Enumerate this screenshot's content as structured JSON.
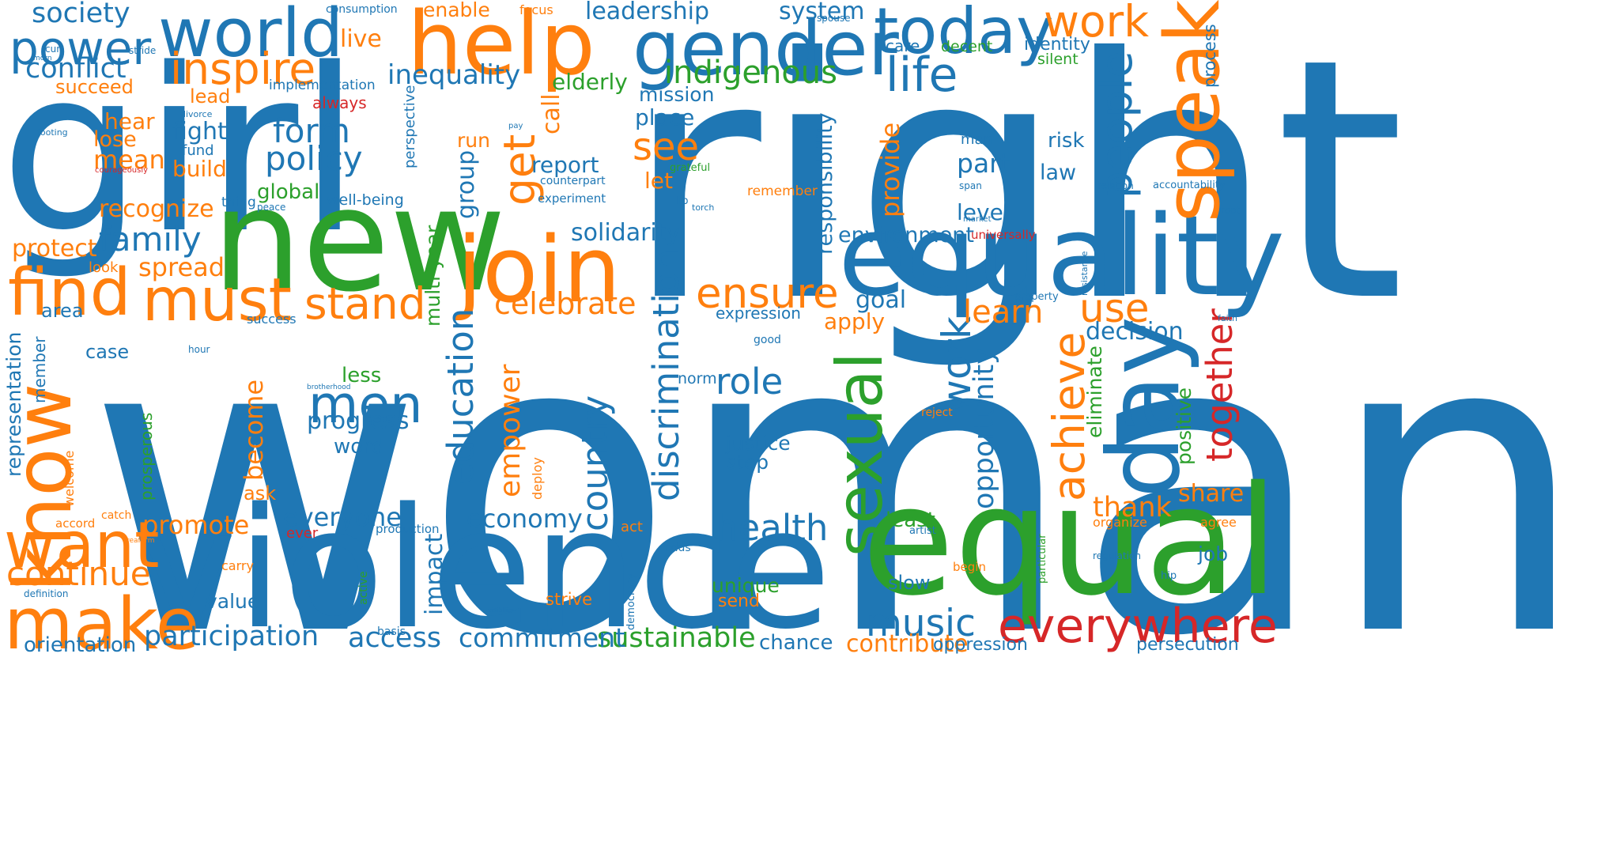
{
  "colors": {
    "blue": "#1f77b4",
    "orange": "#ff7f0e",
    "green": "#2ca02c",
    "red": "#d62728",
    "background": "#ffffff"
  },
  "words": [
    {
      "text": "woman",
      "color": "blue"
    },
    {
      "text": "right",
      "color": "blue"
    },
    {
      "text": "girl",
      "color": "blue"
    },
    {
      "text": "violence",
      "color": "blue"
    },
    {
      "text": "new",
      "color": "green"
    },
    {
      "text": "equal",
      "color": "green"
    },
    {
      "text": "equality",
      "color": "blue"
    },
    {
      "text": "help",
      "color": "orange"
    },
    {
      "text": "gender",
      "color": "blue"
    },
    {
      "text": "world",
      "color": "blue"
    },
    {
      "text": "today",
      "color": "blue"
    },
    {
      "text": "join",
      "color": "orange"
    },
    {
      "text": "speak",
      "color": "orange"
    },
    {
      "text": "day",
      "color": "blue"
    },
    {
      "text": "make",
      "color": "orange"
    },
    {
      "text": "want",
      "color": "orange"
    },
    {
      "text": "find",
      "color": "orange"
    },
    {
      "text": "must",
      "color": "orange"
    },
    {
      "text": "know",
      "color": "orange"
    },
    {
      "text": "everywhere",
      "color": "red"
    },
    {
      "text": "sexual",
      "color": "green"
    },
    {
      "text": "power",
      "color": "blue"
    },
    {
      "text": "inspire",
      "color": "orange"
    },
    {
      "text": "life",
      "color": "blue"
    },
    {
      "text": "work",
      "color": "orange"
    },
    {
      "text": "people",
      "color": "blue"
    },
    {
      "text": "achieve",
      "color": "orange"
    },
    {
      "text": "men",
      "color": "blue"
    },
    {
      "text": "stand",
      "color": "orange"
    },
    {
      "text": "ensure",
      "color": "orange"
    },
    {
      "text": "get",
      "color": "orange"
    },
    {
      "text": "discrimination",
      "color": "blue"
    },
    {
      "text": "education",
      "color": "blue"
    },
    {
      "text": "country",
      "color": "blue"
    },
    {
      "text": "music",
      "color": "blue"
    },
    {
      "text": "health",
      "color": "blue"
    },
    {
      "text": "continue",
      "color": "orange"
    },
    {
      "text": "participation",
      "color": "blue"
    },
    {
      "text": "sustainable",
      "color": "green"
    },
    {
      "text": "commitment",
      "color": "blue"
    },
    {
      "text": "access",
      "color": "blue"
    },
    {
      "text": "family",
      "color": "blue"
    },
    {
      "text": "policy",
      "color": "blue"
    },
    {
      "text": "form",
      "color": "blue"
    },
    {
      "text": "see",
      "color": "orange"
    },
    {
      "text": "use",
      "color": "orange"
    },
    {
      "text": "role",
      "color": "blue"
    },
    {
      "text": "work",
      "color": "blue"
    },
    {
      "text": "opportunity",
      "color": "blue"
    },
    {
      "text": "together",
      "color": "red"
    },
    {
      "text": "empower",
      "color": "orange"
    },
    {
      "text": "society",
      "color": "blue"
    },
    {
      "text": "conflict",
      "color": "blue"
    },
    {
      "text": "inequality",
      "color": "blue"
    },
    {
      "text": "indigenous",
      "color": "green"
    },
    {
      "text": "celebrate",
      "color": "orange"
    },
    {
      "text": "everyone",
      "color": "blue"
    },
    {
      "text": "economy",
      "color": "blue"
    },
    {
      "text": "progress",
      "color": "blue"
    },
    {
      "text": "promote",
      "color": "orange"
    },
    {
      "text": "become",
      "color": "orange"
    },
    {
      "text": "representation",
      "color": "blue"
    },
    {
      "text": "orientation",
      "color": "blue"
    },
    {
      "text": "leadership",
      "color": "blue"
    },
    {
      "text": "system",
      "color": "blue"
    },
    {
      "text": "enable",
      "color": "orange"
    },
    {
      "text": "live",
      "color": "orange"
    },
    {
      "text": "recognize",
      "color": "orange"
    },
    {
      "text": "protect",
      "color": "orange"
    },
    {
      "text": "spread",
      "color": "orange"
    },
    {
      "text": "solidarity",
      "color": "blue"
    },
    {
      "text": "environment",
      "color": "blue"
    },
    {
      "text": "responsibility",
      "color": "blue"
    },
    {
      "text": "provide",
      "color": "orange"
    },
    {
      "text": "decision",
      "color": "blue"
    },
    {
      "text": "learn",
      "color": "orange"
    },
    {
      "text": "thank",
      "color": "orange"
    },
    {
      "text": "share",
      "color": "orange"
    },
    {
      "text": "positive",
      "color": "green"
    },
    {
      "text": "eliminate",
      "color": "green"
    },
    {
      "text": "contribute",
      "color": "orange"
    },
    {
      "text": "oppression",
      "color": "blue"
    },
    {
      "text": "persecution",
      "color": "blue"
    },
    {
      "text": "chance",
      "color": "blue"
    },
    {
      "text": "justice",
      "color": "blue"
    },
    {
      "text": "step",
      "color": "blue"
    },
    {
      "text": "unique",
      "color": "green"
    },
    {
      "text": "send",
      "color": "orange"
    },
    {
      "text": "slow",
      "color": "blue"
    },
    {
      "text": "least",
      "color": "green"
    },
    {
      "text": "multi-year",
      "color": "green"
    },
    {
      "text": "impact",
      "color": "blue"
    },
    {
      "text": "group",
      "color": "blue"
    },
    {
      "text": "call",
      "color": "orange"
    },
    {
      "text": "run",
      "color": "orange"
    },
    {
      "text": "report",
      "color": "blue"
    },
    {
      "text": "let",
      "color": "orange"
    },
    {
      "text": "mission",
      "color": "blue"
    },
    {
      "text": "place",
      "color": "blue"
    },
    {
      "text": "elderly",
      "color": "green"
    },
    {
      "text": "part",
      "color": "blue"
    },
    {
      "text": "law",
      "color": "blue"
    },
    {
      "text": "risk",
      "color": "blue"
    },
    {
      "text": "level",
      "color": "blue"
    },
    {
      "text": "goal",
      "color": "blue"
    },
    {
      "text": "apply",
      "color": "orange"
    },
    {
      "text": "expression",
      "color": "blue"
    },
    {
      "text": "identity",
      "color": "blue"
    },
    {
      "text": "silent",
      "color": "green"
    },
    {
      "text": "process",
      "color": "blue"
    },
    {
      "text": "decent",
      "color": "green"
    },
    {
      "text": "care",
      "color": "blue"
    },
    {
      "text": "fight",
      "color": "blue"
    },
    {
      "text": "fund",
      "color": "blue"
    },
    {
      "text": "mean",
      "color": "orange"
    },
    {
      "text": "lose",
      "color": "orange"
    },
    {
      "text": "hear",
      "color": "orange"
    },
    {
      "text": "lead",
      "color": "orange"
    },
    {
      "text": "build",
      "color": "orange"
    },
    {
      "text": "succeed",
      "color": "orange"
    },
    {
      "text": "global",
      "color": "green"
    },
    {
      "text": "always",
      "color": "red"
    },
    {
      "text": "implementation",
      "color": "blue"
    },
    {
      "text": "look",
      "color": "orange"
    },
    {
      "text": "area",
      "color": "blue"
    },
    {
      "text": "success",
      "color": "blue"
    },
    {
      "text": "case",
      "color": "blue"
    },
    {
      "text": "member",
      "color": "blue"
    },
    {
      "text": "prosperous",
      "color": "green"
    },
    {
      "text": "ask",
      "color": "orange"
    },
    {
      "text": "word",
      "color": "blue"
    },
    {
      "text": "less",
      "color": "green"
    },
    {
      "text": "norm",
      "color": "blue"
    },
    {
      "text": "value",
      "color": "blue"
    },
    {
      "text": "carry",
      "color": "orange"
    },
    {
      "text": "ever",
      "color": "red"
    },
    {
      "text": "job",
      "color": "blue"
    },
    {
      "text": "agree",
      "color": "orange"
    },
    {
      "text": "organize",
      "color": "orange"
    },
    {
      "text": "remember",
      "color": "orange"
    },
    {
      "text": "focus",
      "color": "orange"
    },
    {
      "text": "consumption",
      "color": "blue"
    },
    {
      "text": "stride",
      "color": "blue"
    },
    {
      "text": "well-being",
      "color": "blue"
    },
    {
      "text": "thing",
      "color": "blue"
    },
    {
      "text": "man",
      "color": "blue"
    },
    {
      "text": "universally",
      "color": "red"
    },
    {
      "text": "strive",
      "color": "orange"
    },
    {
      "text": "act",
      "color": "orange"
    },
    {
      "text": "artist",
      "color": "blue"
    },
    {
      "text": "begin",
      "color": "orange"
    },
    {
      "text": "reject",
      "color": "orange"
    },
    {
      "text": "accord",
      "color": "orange"
    },
    {
      "text": "catch",
      "color": "orange"
    },
    {
      "text": "welcome",
      "color": "orange"
    },
    {
      "text": "deploy",
      "color": "orange"
    },
    {
      "text": "perspective",
      "color": "blue"
    },
    {
      "text": "definition",
      "color": "blue"
    },
    {
      "text": "basis",
      "color": "blue"
    },
    {
      "text": "production",
      "color": "blue"
    },
    {
      "text": "odds",
      "color": "blue"
    },
    {
      "text": "democracy",
      "color": "blue"
    },
    {
      "text": "active",
      "color": "green"
    },
    {
      "text": "particular",
      "color": "green"
    },
    {
      "text": "regulation",
      "color": "blue"
    },
    {
      "text": "hip",
      "color": "blue"
    },
    {
      "text": "accountability",
      "color": "blue"
    },
    {
      "text": "relation",
      "color": "blue"
    },
    {
      "text": "root",
      "color": "blue"
    },
    {
      "text": "span",
      "color": "blue"
    },
    {
      "text": "property",
      "color": "blue"
    },
    {
      "text": "resistance",
      "color": "blue"
    },
    {
      "text": "faith",
      "color": "blue"
    },
    {
      "text": "market",
      "color": "blue"
    },
    {
      "text": "good",
      "color": "blue"
    },
    {
      "text": "hour",
      "color": "blue"
    },
    {
      "text": "brotherhood",
      "color": "blue"
    },
    {
      "text": "visibility",
      "color": "blue"
    },
    {
      "text": "reaffirm",
      "color": "orange"
    },
    {
      "text": "grateful",
      "color": "green"
    },
    {
      "text": "experiment",
      "color": "blue"
    },
    {
      "text": "counterpart",
      "color": "blue"
    },
    {
      "text": "lip",
      "color": "blue"
    },
    {
      "text": "torch",
      "color": "blue"
    },
    {
      "text": "peace",
      "color": "blue"
    },
    {
      "text": "pay",
      "color": "blue"
    },
    {
      "text": "spouse",
      "color": "blue"
    },
    {
      "text": "morn",
      "color": "blue"
    },
    {
      "text": "curl",
      "color": "blue"
    },
    {
      "text": "divorce",
      "color": "blue"
    },
    {
      "text": "footing",
      "color": "blue"
    },
    {
      "text": "courageously",
      "color": "red"
    }
  ]
}
